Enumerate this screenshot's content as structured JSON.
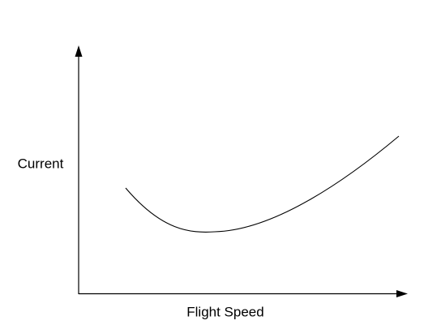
{
  "axes": {
    "y_label": "Current",
    "x_label": "Flight Speed"
  }
}
